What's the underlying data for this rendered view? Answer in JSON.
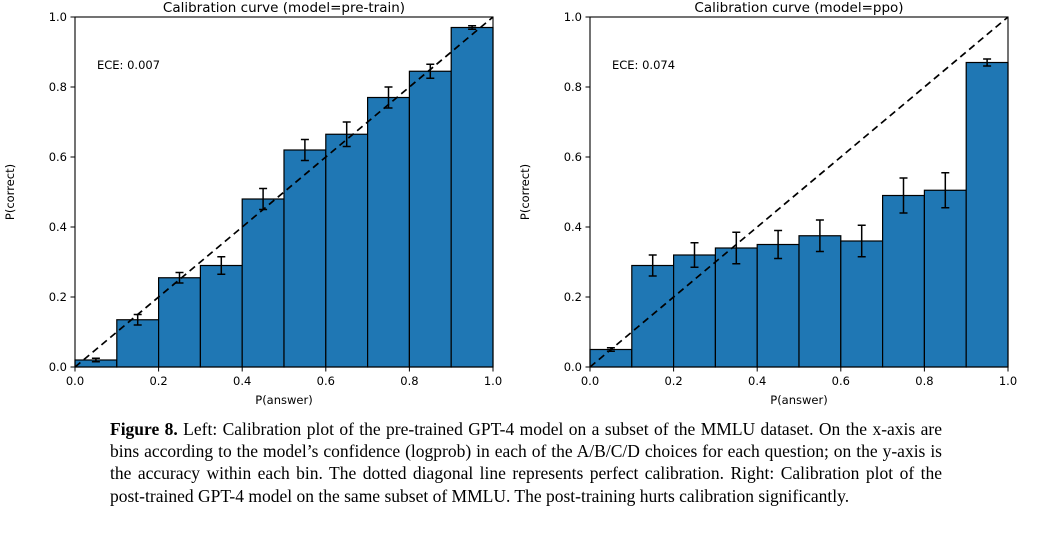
{
  "page": {
    "background": "#ffffff",
    "text_color": "#000000"
  },
  "caption": {
    "label": "Figure 8.",
    "text": " Left: Calibration plot of the pre-trained GPT-4 model on a subset of the MMLU dataset. On the x-axis are bins according to the model’s confidence (logprob) in each of the A/B/C/D choices for each question; on the y-axis is the accuracy within each bin. The dotted diagonal line represents perfect calibration. Right: Calibration plot of the post-trained GPT-4 model on the same subset of MMLU. The post-training hurts calibration significantly."
  },
  "chart_data": [
    {
      "type": "bar",
      "title": "Calibration curve (model=pre-train)",
      "xlabel": "P(answer)",
      "ylabel": "P(correct)",
      "annotation": "ECE: 0.007",
      "xlim": [
        0.0,
        1.0
      ],
      "ylim": [
        0.0,
        1.0
      ],
      "xticks": [
        0.0,
        0.2,
        0.4,
        0.6,
        0.8,
        1.0
      ],
      "yticks": [
        0.0,
        0.2,
        0.4,
        0.6,
        0.8,
        1.0
      ],
      "grid": false,
      "bin_edges": [
        0.0,
        0.1,
        0.2,
        0.3,
        0.4,
        0.5,
        0.6,
        0.7,
        0.8,
        0.9,
        1.0
      ],
      "values": [
        0.02,
        0.135,
        0.255,
        0.29,
        0.48,
        0.62,
        0.665,
        0.77,
        0.845,
        0.97
      ],
      "errors": [
        0.005,
        0.015,
        0.015,
        0.025,
        0.03,
        0.03,
        0.035,
        0.03,
        0.02,
        0.005
      ],
      "diagonal_line": true,
      "bar_color": "#1f77b4",
      "bar_edge_color": "#000000",
      "line_color": "#000000"
    },
    {
      "type": "bar",
      "title": "Calibration curve (model=ppo)",
      "xlabel": "P(answer)",
      "ylabel": "P(correct)",
      "annotation": "ECE: 0.074",
      "xlim": [
        0.0,
        1.0
      ],
      "ylim": [
        0.0,
        1.0
      ],
      "xticks": [
        0.0,
        0.2,
        0.4,
        0.6,
        0.8,
        1.0
      ],
      "yticks": [
        0.0,
        0.2,
        0.4,
        0.6,
        0.8,
        1.0
      ],
      "grid": false,
      "bin_edges": [
        0.0,
        0.1,
        0.2,
        0.3,
        0.4,
        0.5,
        0.6,
        0.7,
        0.8,
        0.9,
        1.0
      ],
      "values": [
        0.05,
        0.29,
        0.32,
        0.34,
        0.35,
        0.375,
        0.36,
        0.49,
        0.505,
        0.87
      ],
      "errors": [
        0.005,
        0.03,
        0.035,
        0.045,
        0.04,
        0.045,
        0.045,
        0.05,
        0.05,
        0.01
      ],
      "diagonal_line": true,
      "bar_color": "#1f77b4",
      "bar_edge_color": "#000000",
      "line_color": "#000000"
    }
  ]
}
